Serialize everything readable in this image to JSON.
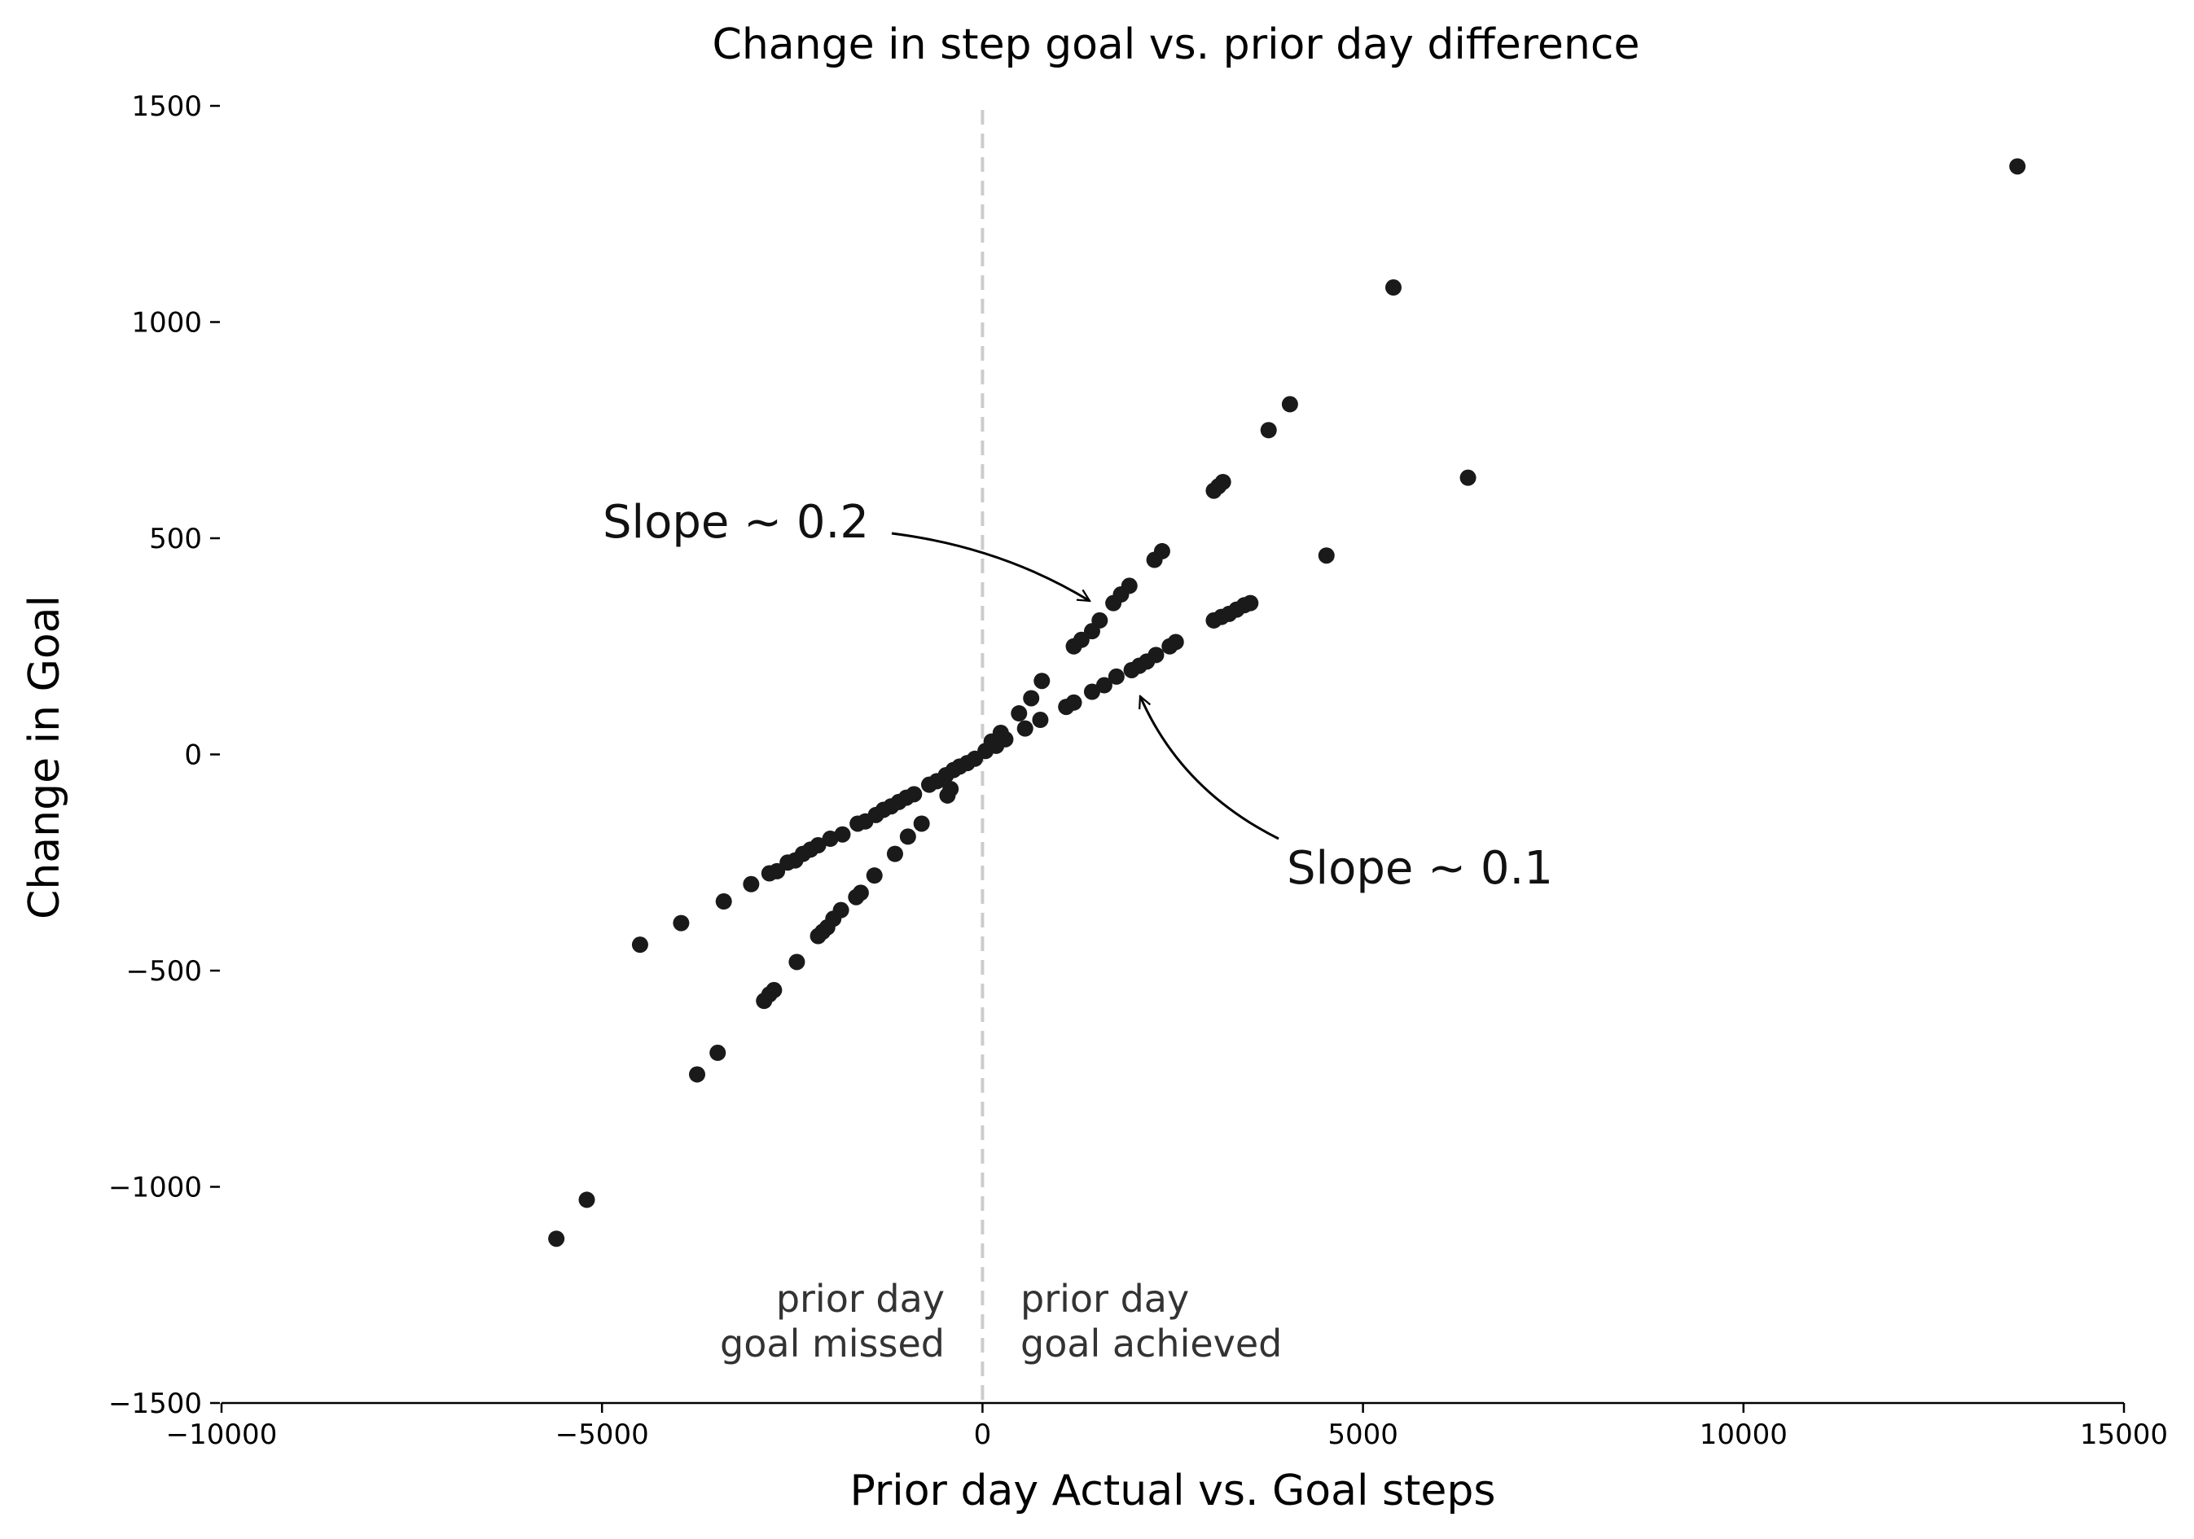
{
  "chart_data": {
    "type": "scatter",
    "title": "Change in step goal vs. prior day difference",
    "xlabel": "Prior day Actual vs. Goal steps",
    "ylabel": "Change in Goal",
    "xlim": [
      -10000,
      15000
    ],
    "ylim": [
      -1500,
      1500
    ],
    "xticks": [
      -10000,
      -5000,
      0,
      5000,
      10000,
      15000
    ],
    "yticks": [
      -1500,
      -1000,
      -500,
      0,
      500,
      1000,
      1500
    ],
    "xtick_labels": [
      "−10000",
      "−5000",
      "0",
      "5000",
      "10000",
      "15000"
    ],
    "ytick_labels": [
      "−1500",
      "−1000",
      "−500",
      "0",
      "500",
      "1000",
      "1500"
    ],
    "grid": false,
    "reference_line": {
      "x": 0,
      "style": "dashed",
      "color": "#cccccc"
    },
    "point_color": "#1a1a1a",
    "points": [
      [
        -5600,
        -1120
      ],
      [
        -5200,
        -1030
      ],
      [
        -3750,
        -740
      ],
      [
        -3480,
        -690
      ],
      [
        -2870,
        -570
      ],
      [
        -2800,
        -555
      ],
      [
        -2740,
        -545
      ],
      [
        -2440,
        -480
      ],
      [
        -2160,
        -420
      ],
      [
        -2100,
        -410
      ],
      [
        -2040,
        -400
      ],
      [
        -1960,
        -380
      ],
      [
        -1860,
        -360
      ],
      [
        -1660,
        -330
      ],
      [
        -1600,
        -320
      ],
      [
        -1420,
        -280
      ],
      [
        -1150,
        -230
      ],
      [
        -980,
        -190
      ],
      [
        -800,
        -160
      ],
      [
        -460,
        -95
      ],
      [
        -420,
        -80
      ],
      [
        -4500,
        -440
      ],
      [
        -3960,
        -390
      ],
      [
        -3400,
        -340
      ],
      [
        -3040,
        -300
      ],
      [
        -2800,
        -275
      ],
      [
        -2700,
        -270
      ],
      [
        -2560,
        -250
      ],
      [
        -2460,
        -245
      ],
      [
        -2360,
        -230
      ],
      [
        -2260,
        -220
      ],
      [
        -2160,
        -210
      ],
      [
        -2000,
        -195
      ],
      [
        -1840,
        -185
      ],
      [
        -1640,
        -160
      ],
      [
        -1540,
        -155
      ],
      [
        -1400,
        -140
      ],
      [
        -1300,
        -128
      ],
      [
        -1200,
        -120
      ],
      [
        -1100,
        -110
      ],
      [
        -1000,
        -100
      ],
      [
        -900,
        -92
      ],
      [
        -700,
        -70
      ],
      [
        -600,
        -62
      ],
      [
        -480,
        -48
      ],
      [
        -380,
        -36
      ],
      [
        -300,
        -28
      ],
      [
        -200,
        -20
      ],
      [
        -100,
        -10
      ],
      [
        40,
        8
      ],
      [
        120,
        30
      ],
      [
        240,
        50
      ],
      [
        480,
        95
      ],
      [
        640,
        130
      ],
      [
        780,
        170
      ],
      [
        1200,
        250
      ],
      [
        1300,
        265
      ],
      [
        1440,
        285
      ],
      [
        1540,
        310
      ],
      [
        1720,
        350
      ],
      [
        1820,
        370
      ],
      [
        1930,
        390
      ],
      [
        2260,
        450
      ],
      [
        2360,
        470
      ],
      [
        3040,
        610
      ],
      [
        3100,
        620
      ],
      [
        3160,
        630
      ],
      [
        3760,
        750
      ],
      [
        4040,
        810
      ],
      [
        5400,
        1080
      ],
      [
        13600,
        1360
      ],
      [
        180,
        20
      ],
      [
        300,
        35
      ],
      [
        560,
        60
      ],
      [
        760,
        80
      ],
      [
        1100,
        110
      ],
      [
        1200,
        120
      ],
      [
        1440,
        145
      ],
      [
        1600,
        160
      ],
      [
        1760,
        180
      ],
      [
        1960,
        195
      ],
      [
        2060,
        205
      ],
      [
        2160,
        215
      ],
      [
        2280,
        230
      ],
      [
        2460,
        250
      ],
      [
        2540,
        260
      ],
      [
        3040,
        310
      ],
      [
        3140,
        318
      ],
      [
        3240,
        325
      ],
      [
        3340,
        335
      ],
      [
        3440,
        345
      ],
      [
        3520,
        350
      ],
      [
        4520,
        460
      ],
      [
        6380,
        640
      ]
    ],
    "annotations": [
      {
        "text": "Slope ~ 0.2",
        "target": [
          1420,
          360
        ]
      },
      {
        "text": "Slope ~ 0.1",
        "target": [
          2020,
          140
        ]
      }
    ],
    "region_labels": {
      "left": [
        "prior day",
        "goal missed"
      ],
      "right": [
        "prior day",
        "goal achieved"
      ]
    }
  }
}
